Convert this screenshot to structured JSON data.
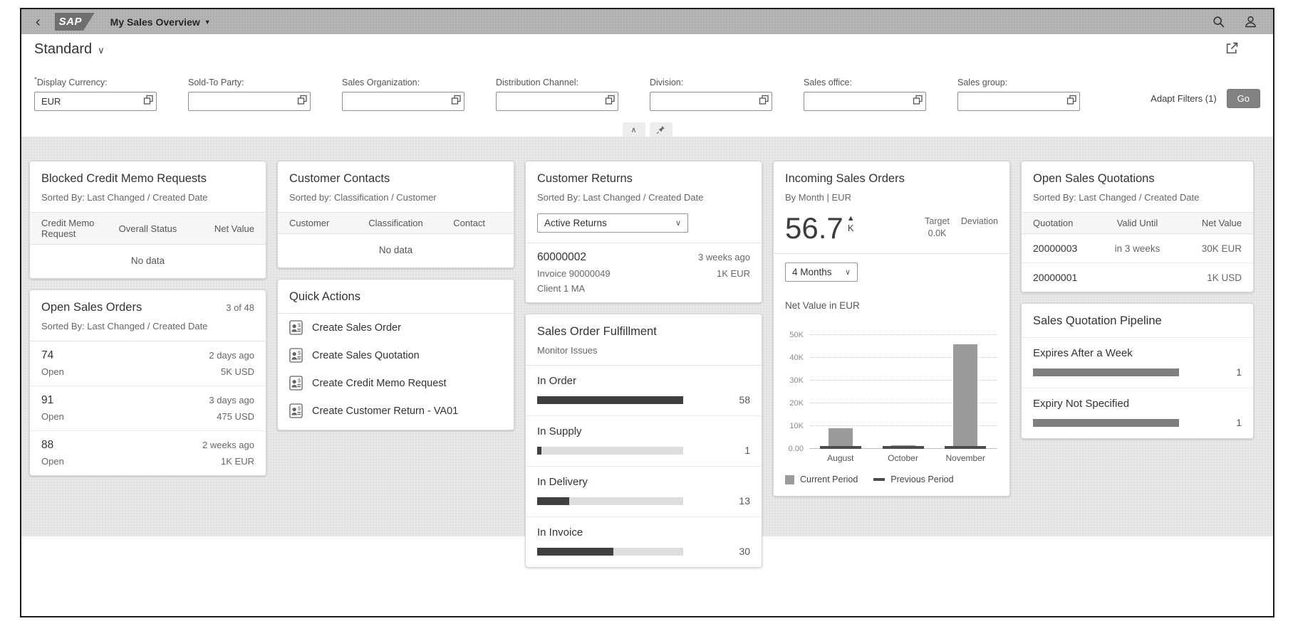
{
  "icons": {
    "back": "‹",
    "title_caret": "▼",
    "variant_caret": "∨",
    "select_caret": "∨",
    "collapse_caret": "∧",
    "kpi_trend_up": "▲"
  },
  "theme": {
    "shell_bg": "#b5b5b5",
    "page_bg": "#e8e8e8",
    "go_button_bg": "#828282",
    "bar_dark": "#3f3f3f",
    "bar_mid": "#7f7f7f",
    "chart_bar": "#9b9b9b"
  },
  "shell": {
    "logo_text": "SAP",
    "app_title": "My Sales Overview"
  },
  "variant": {
    "name": "Standard"
  },
  "filter_bar": {
    "fields": [
      {
        "marker": "*",
        "label": "Display Currency:",
        "value": "EUR"
      },
      {
        "marker": "",
        "label": "Sold-To Party:",
        "value": ""
      },
      {
        "marker": "",
        "label": "Sales Organization:",
        "value": ""
      },
      {
        "marker": "",
        "label": "Distribution Channel:",
        "value": ""
      },
      {
        "marker": "",
        "label": "Division:",
        "value": ""
      },
      {
        "marker": "",
        "label": "Sales office:",
        "value": ""
      },
      {
        "marker": "",
        "label": "Sales group:",
        "value": ""
      }
    ],
    "adapt_filters_label": "Adapt Filters (1)",
    "go_label": "Go"
  },
  "cards": {
    "blocked_credit_memo_requests": {
      "title": "Blocked Credit Memo Requests",
      "subtitle": "Sorted By: Last Changed / Created Date",
      "columns": [
        "Credit Memo Request",
        "Overall Status",
        "Net Value"
      ],
      "empty_text": "No data"
    },
    "open_sales_orders": {
      "title": "Open Sales Orders",
      "counter": "3 of 48",
      "subtitle": "Sorted By: Last Changed / Created Date",
      "rows": [
        {
          "id": "74",
          "status": "Open",
          "age": "2 days ago",
          "value": "5K USD"
        },
        {
          "id": "91",
          "status": "Open",
          "age": "3 days ago",
          "value": "475 USD"
        },
        {
          "id": "88",
          "status": "Open",
          "age": "2 weeks ago",
          "value": "1K EUR"
        }
      ]
    },
    "customer_contacts": {
      "title": "Customer Contacts",
      "subtitle": "Sorted by: Classification / Customer",
      "columns": [
        "Customer",
        "Classification",
        "Contact"
      ],
      "empty_text": "No data"
    },
    "quick_actions": {
      "title": "Quick Actions",
      "actions": [
        {
          "label": "Create Sales Order"
        },
        {
          "label": "Create Sales Quotation"
        },
        {
          "label": "Create Credit Memo Request"
        },
        {
          "label": "Create Customer Return - VA01"
        }
      ]
    },
    "customer_returns": {
      "title": "Customer Returns",
      "subtitle": "Sorted By: Last Changed / Created Date",
      "filter_value": "Active Returns",
      "rows": [
        {
          "id": "60000002",
          "age": "3 weeks ago",
          "reference": "Invoice 90000049",
          "value": "1K EUR",
          "customer": "Client 1 MA"
        }
      ]
    },
    "sales_order_fulfillment": {
      "title": "Sales Order Fulfillment",
      "subtitle": "Monitor Issues",
      "items": [
        {
          "label": "In Order",
          "count": "58",
          "pct": 100
        },
        {
          "label": "In Supply",
          "count": "1",
          "pct": 3
        },
        {
          "label": "In Delivery",
          "count": "13",
          "pct": 22
        },
        {
          "label": "In Invoice",
          "count": "30",
          "pct": 52
        }
      ]
    },
    "incoming_sales_orders": {
      "title": "Incoming Sales Orders",
      "subtitle": "By Month | EUR",
      "kpi_value": "56.7",
      "kpi_unit": "K",
      "target_label": "Target",
      "deviation_label": "Deviation",
      "target_value": "0.0K",
      "period_filter_value": "4 Months"
    },
    "open_sales_quotations": {
      "title": "Open Sales Quotations",
      "subtitle": "Sorted By: Last Changed / Created Date",
      "columns": [
        "Quotation",
        "Valid Until",
        "Net Value"
      ],
      "rows": [
        {
          "quotation": "20000003",
          "valid_until": "in 3 weeks",
          "net_value": "30K EUR"
        },
        {
          "quotation": "20000001",
          "valid_until": "",
          "net_value": "1K USD"
        }
      ]
    },
    "sales_quotation_pipeline": {
      "title": "Sales Quotation Pipeline",
      "items": [
        {
          "label": "Expires After a Week",
          "count": "1",
          "pct": 100
        },
        {
          "label": "Expiry Not Specified",
          "count": "1",
          "pct": 100
        }
      ]
    }
  },
  "chart_data": {
    "type": "bar",
    "title": "Net Value in EUR",
    "categories": [
      "August",
      "October",
      "November"
    ],
    "series": [
      {
        "name": "Current Period",
        "values": [
          9200,
          1500,
          46000
        ]
      },
      {
        "name": "Previous Period",
        "values": [
          1000,
          1000,
          1000
        ]
      }
    ],
    "yticks": [
      "50K",
      "40K",
      "30K",
      "20K",
      "10K",
      "0.00"
    ],
    "ylim": [
      0,
      50000
    ],
    "grid": true,
    "legend_position": "bottom"
  }
}
